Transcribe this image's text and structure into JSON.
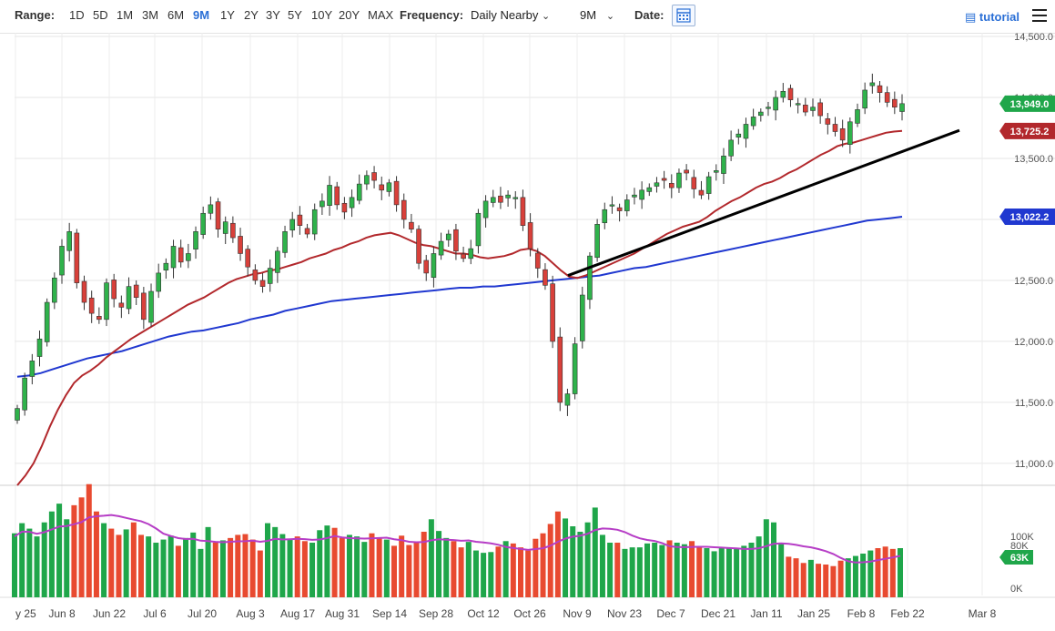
{
  "toolbar": {
    "range_label": "Range:",
    "range_options": [
      "1D",
      "5D",
      "1M",
      "3M",
      "6M",
      "9M",
      "1Y",
      "2Y",
      "3Y",
      "5Y",
      "10Y",
      "20Y",
      "MAX"
    ],
    "active_range": "9M",
    "frequency_label": "Frequency:",
    "frequency_value": "Daily Nearby",
    "period_value": "9M",
    "date_label": "Date:",
    "tutorial_label": "tutorial",
    "accent_color": "#2a6fd6"
  },
  "chart_data": [
    {
      "type": "candlestick",
      "price_axis": {
        "ylim": [
          10850,
          14500
        ],
        "ticks": [
          11000,
          11500,
          12000,
          12500,
          13000,
          13500,
          14000,
          14500
        ],
        "tick_labels": [
          "11,000.0",
          "11,500.0",
          "12,000.0",
          "12,500.0",
          "13,000.0",
          "13,500.0",
          "14,000.0",
          "14,500.0"
        ]
      },
      "x_axis": {
        "labels": [
          "y 25",
          "Jun 8",
          "Jun 22",
          "Jul 6",
          "Jul 20",
          "Aug 3",
          "Aug 17",
          "Aug 31",
          "Sep 14",
          "Sep 28",
          "Oct 12",
          "Oct 26",
          "Nov 9",
          "Nov 23",
          "Dec 7",
          "Dec 21",
          "Jan 11",
          "Jan 25",
          "Feb 8",
          "Feb 22",
          "Mar 8"
        ]
      },
      "grid": true,
      "closes": [
        11450,
        11700,
        11840,
        12020,
        12320,
        12520,
        12780,
        12900,
        12480,
        12320,
        12230,
        12180,
        12480,
        12350,
        12280,
        12450,
        12360,
        12180,
        12410,
        12560,
        12640,
        12780,
        12650,
        12720,
        12900,
        13050,
        13120,
        12920,
        12980,
        12850,
        12720,
        12610,
        12500,
        12450,
        12600,
        12740,
        12900,
        13000,
        12950,
        12880,
        13080,
        13150,
        13280,
        13120,
        13060,
        13180,
        13290,
        13360,
        13320,
        13240,
        13300,
        13120,
        13000,
        12920,
        12640,
        12560,
        12720,
        12820,
        12880,
        12740,
        12680,
        12760,
        13050,
        13150,
        13180,
        13140,
        13200,
        13180,
        12950,
        12760,
        12600,
        12460,
        12000,
        11500,
        11570,
        11980,
        12380,
        12700,
        12960,
        13080,
        13120,
        13070,
        13160,
        13200,
        13240,
        13260,
        13300,
        13320,
        13260,
        13380,
        13380,
        13250,
        13200,
        13350,
        13400,
        13520,
        13650,
        13700,
        13780,
        13840,
        13880,
        13920,
        14000,
        14050,
        13980,
        13950,
        13880,
        13920,
        13850,
        13780,
        13720,
        13650,
        13800,
        13900,
        14060,
        14120,
        14040,
        13960,
        13920,
        13949
      ],
      "series": [
        {
          "name": "",
          "price_label": "13,949.0",
          "color": "#1fa64a",
          "values": "closes"
        },
        {
          "name": "",
          "price_label": "13,725.2",
          "color": "#b2282c",
          "values": [
            10820,
            10900,
            11000,
            11140,
            11300,
            11440,
            11560,
            11660,
            11720,
            11760,
            11810,
            11870,
            11920,
            11970,
            12020,
            12060,
            12100,
            12140,
            12180,
            12220,
            12260,
            12300,
            12330,
            12360,
            12400,
            12440,
            12480,
            12510,
            12530,
            12550,
            12560,
            12580,
            12590,
            12610,
            12630,
            12650,
            12680,
            12700,
            12720,
            12750,
            12770,
            12800,
            12820,
            12850,
            12870,
            12880,
            12890,
            12870,
            12840,
            12810,
            12790,
            12780,
            12760,
            12740,
            12720,
            12720,
            12710,
            12690,
            12680,
            12690,
            12700,
            12720,
            12750,
            12760,
            12740,
            12700,
            12640,
            12580,
            12530,
            12520,
            12540,
            12570,
            12600,
            12630,
            12660,
            12690,
            12720,
            12760,
            12800,
            12840,
            12880,
            12910,
            12940,
            12960,
            12980,
            13020,
            13070,
            13110,
            13150,
            13180,
            13220,
            13260,
            13290,
            13310,
            13340,
            13380,
            13410,
            13450,
            13490,
            13530,
            13560,
            13600,
            13620,
            13630,
            13650,
            13670,
            13690,
            13710,
            13720,
            13725
          ]
        },
        {
          "name": "",
          "price_label": "13,022.2",
          "color": "#2038d0",
          "values": [
            11710,
            11720,
            11740,
            11770,
            11800,
            11830,
            11860,
            11880,
            11900,
            11920,
            11950,
            11980,
            12010,
            12040,
            12060,
            12080,
            12090,
            12110,
            12130,
            12150,
            12180,
            12200,
            12220,
            12250,
            12270,
            12290,
            12310,
            12330,
            12340,
            12350,
            12360,
            12370,
            12380,
            12390,
            12400,
            12410,
            12420,
            12430,
            12440,
            12440,
            12450,
            12450,
            12460,
            12470,
            12480,
            12490,
            12500,
            12510,
            12520,
            12530,
            12540,
            12560,
            12580,
            12600,
            12610,
            12630,
            12650,
            12670,
            12690,
            12710,
            12730,
            12750,
            12770,
            12790,
            12810,
            12830,
            12850,
            12870,
            12890,
            12910,
            12930,
            12950,
            12970,
            12990,
            13000,
            13010,
            13022
          ]
        }
      ],
      "price_labels": [
        "13,949.0",
        "13,725.2",
        "13,022.2"
      ],
      "annotation": "trendline"
    },
    {
      "type": "bar",
      "volume_axis": {
        "ylim": [
          0,
          140000
        ],
        "tick_labels": [
          "100K",
          "80K",
          "0K"
        ]
      },
      "volume_badge": "63K",
      "values": [
        82000,
        95000,
        88000,
        78000,
        96000,
        110000,
        120000,
        100000,
        118000,
        128000,
        145000,
        110000,
        95000,
        88000,
        80000,
        87000,
        96000,
        80000,
        78000,
        70000,
        74000,
        79000,
        66000,
        76000,
        83000,
        62000,
        90000,
        70000,
        73000,
        76000,
        80000,
        81000,
        74000,
        60000,
        95000,
        90000,
        81000,
        74000,
        78000,
        72000,
        70000,
        86000,
        92000,
        89000,
        76000,
        80000,
        78000,
        71000,
        82000,
        76000,
        74000,
        66000,
        79000,
        67000,
        70000,
        84000,
        100000,
        85000,
        76000,
        72000,
        64000,
        71000,
        60000,
        57000,
        58000,
        65000,
        72000,
        69000,
        64000,
        60000,
        75000,
        82000,
        94000,
        110000,
        101000,
        91000,
        84000,
        96000,
        115000,
        80000,
        70000,
        70000,
        62000,
        64000,
        64000,
        69000,
        70000,
        67000,
        73000,
        70000,
        68000,
        72000,
        65000,
        63000,
        59000,
        64000,
        63000,
        62000,
        66000,
        70000,
        78000,
        100000,
        96000,
        70000,
        52000,
        50000,
        44000,
        48000,
        43000,
        42000,
        40000,
        47000,
        50000,
        53000,
        56000,
        60000,
        63000,
        65000,
        62000,
        63000
      ],
      "avg_color": "#b63dc6",
      "up_color": "#1fa64a",
      "down_color": "#e84a30"
    }
  ]
}
